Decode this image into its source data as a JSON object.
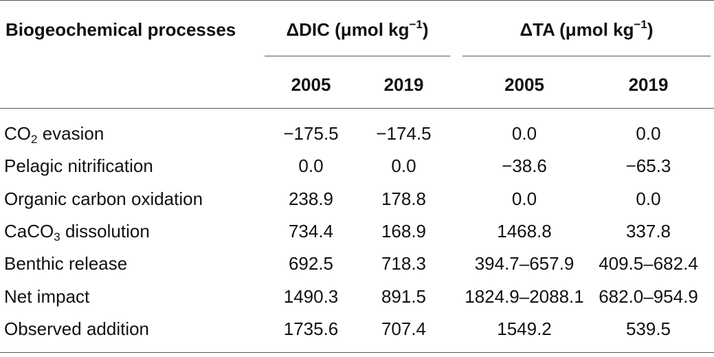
{
  "header": {
    "process_label": "Biogeochemical processes",
    "dic_prefix": "ΔDIC (μmol kg",
    "dic_sup": "−1",
    "dic_suffix": ")",
    "ta_prefix": "ΔTA (μmol kg",
    "ta_sup": "−1",
    "ta_suffix": ")",
    "years": [
      "2005",
      "2019",
      "2005",
      "2019"
    ]
  },
  "rows": [
    {
      "label_a": "CO",
      "label_sub": "2",
      "label_b": " evasion",
      "values": [
        "−175.5",
        "−174.5",
        "0.0",
        "0.0"
      ]
    },
    {
      "label_a": "Pelagic nitrification",
      "label_sub": "",
      "label_b": "",
      "values": [
        "0.0",
        "0.0",
        "−38.6",
        "−65.3"
      ]
    },
    {
      "label_a": "Organic carbon oxidation",
      "label_sub": "",
      "label_b": "",
      "values": [
        "238.9",
        "178.8",
        "0.0",
        "0.0"
      ]
    },
    {
      "label_a": "CaCO",
      "label_sub": "3",
      "label_b": " dissolution",
      "values": [
        "734.4",
        "168.9",
        "1468.8",
        "337.8"
      ]
    },
    {
      "label_a": "Benthic release",
      "label_sub": "",
      "label_b": "",
      "values": [
        "692.5",
        "718.3",
        "394.7–657.9",
        "409.5–682.4"
      ]
    },
    {
      "label_a": "Net impact",
      "label_sub": "",
      "label_b": "",
      "values": [
        "1490.3",
        "891.5",
        "1824.9–2088.1",
        "682.0–954.9"
      ]
    },
    {
      "label_a": "Observed addition",
      "label_sub": "",
      "label_b": "",
      "values": [
        "1735.6",
        "707.4",
        "1549.2",
        "539.5"
      ]
    }
  ]
}
